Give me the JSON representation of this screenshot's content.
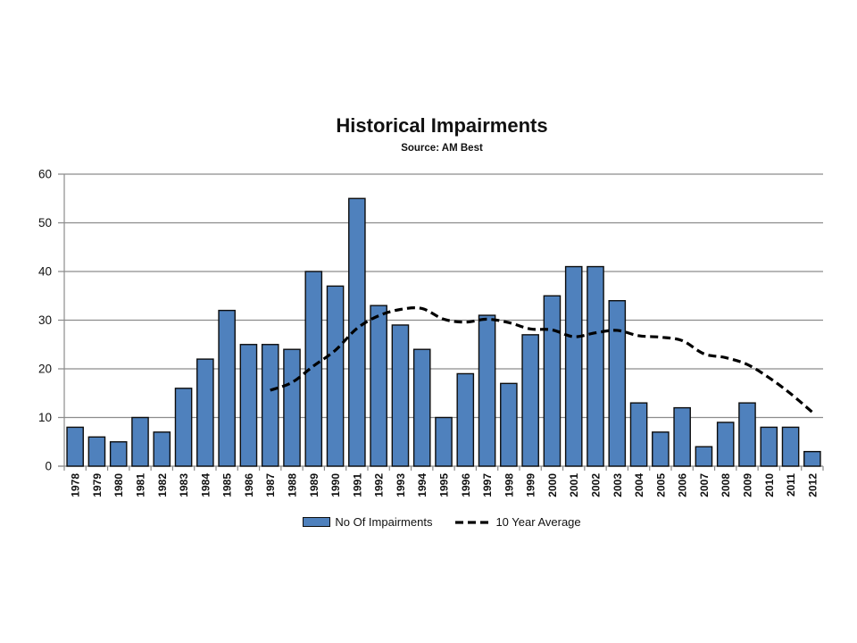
{
  "chart_data": {
    "type": "bar",
    "title": "Historical Impairments",
    "subtitle": "Source: AM Best",
    "categories": [
      "1978",
      "1979",
      "1980",
      "1981",
      "1982",
      "1983",
      "1984",
      "1985",
      "1986",
      "1987",
      "1988",
      "1989",
      "1990",
      "1991",
      "1992",
      "1993",
      "1994",
      "1995",
      "1996",
      "1997",
      "1998",
      "1999",
      "2000",
      "2001",
      "2002",
      "2003",
      "2004",
      "2005",
      "2006",
      "2007",
      "2008",
      "2009",
      "2010",
      "2011",
      "2012"
    ],
    "series": [
      {
        "name": "No Of Impairments",
        "type": "bar",
        "color": "#4F81BD",
        "border_color": "#0d0d0d",
        "values": [
          8,
          6,
          5,
          10,
          7,
          16,
          22,
          32,
          25,
          25,
          24,
          40,
          37,
          55,
          33,
          29,
          24,
          10,
          19,
          31,
          17,
          27,
          35,
          41,
          41,
          34,
          13,
          7,
          12,
          4,
          9,
          13,
          8,
          8,
          3
        ]
      },
      {
        "name": "10 Year Average",
        "type": "line",
        "dashed": true,
        "color": "#000000",
        "start_category": "1987",
        "values": [
          15.6,
          17.2,
          20.6,
          23.8,
          28.3,
          30.9,
          32.2,
          32.4,
          30.2,
          29.6,
          30.2,
          29.5,
          28.2,
          28.0,
          26.6,
          27.4,
          27.9,
          26.8,
          26.5,
          25.8,
          23.1,
          22.3,
          20.9,
          18.2,
          14.9,
          11.1
        ]
      }
    ],
    "ylim": [
      0,
      60
    ],
    "yticks": [
      0,
      10,
      20,
      30,
      40,
      50,
      60
    ],
    "grid": "horizontal",
    "gridline_color": "#8C8C8C",
    "axis_color": "#8C8C8C",
    "text_color": "#111111",
    "legend_position": "bottom"
  }
}
